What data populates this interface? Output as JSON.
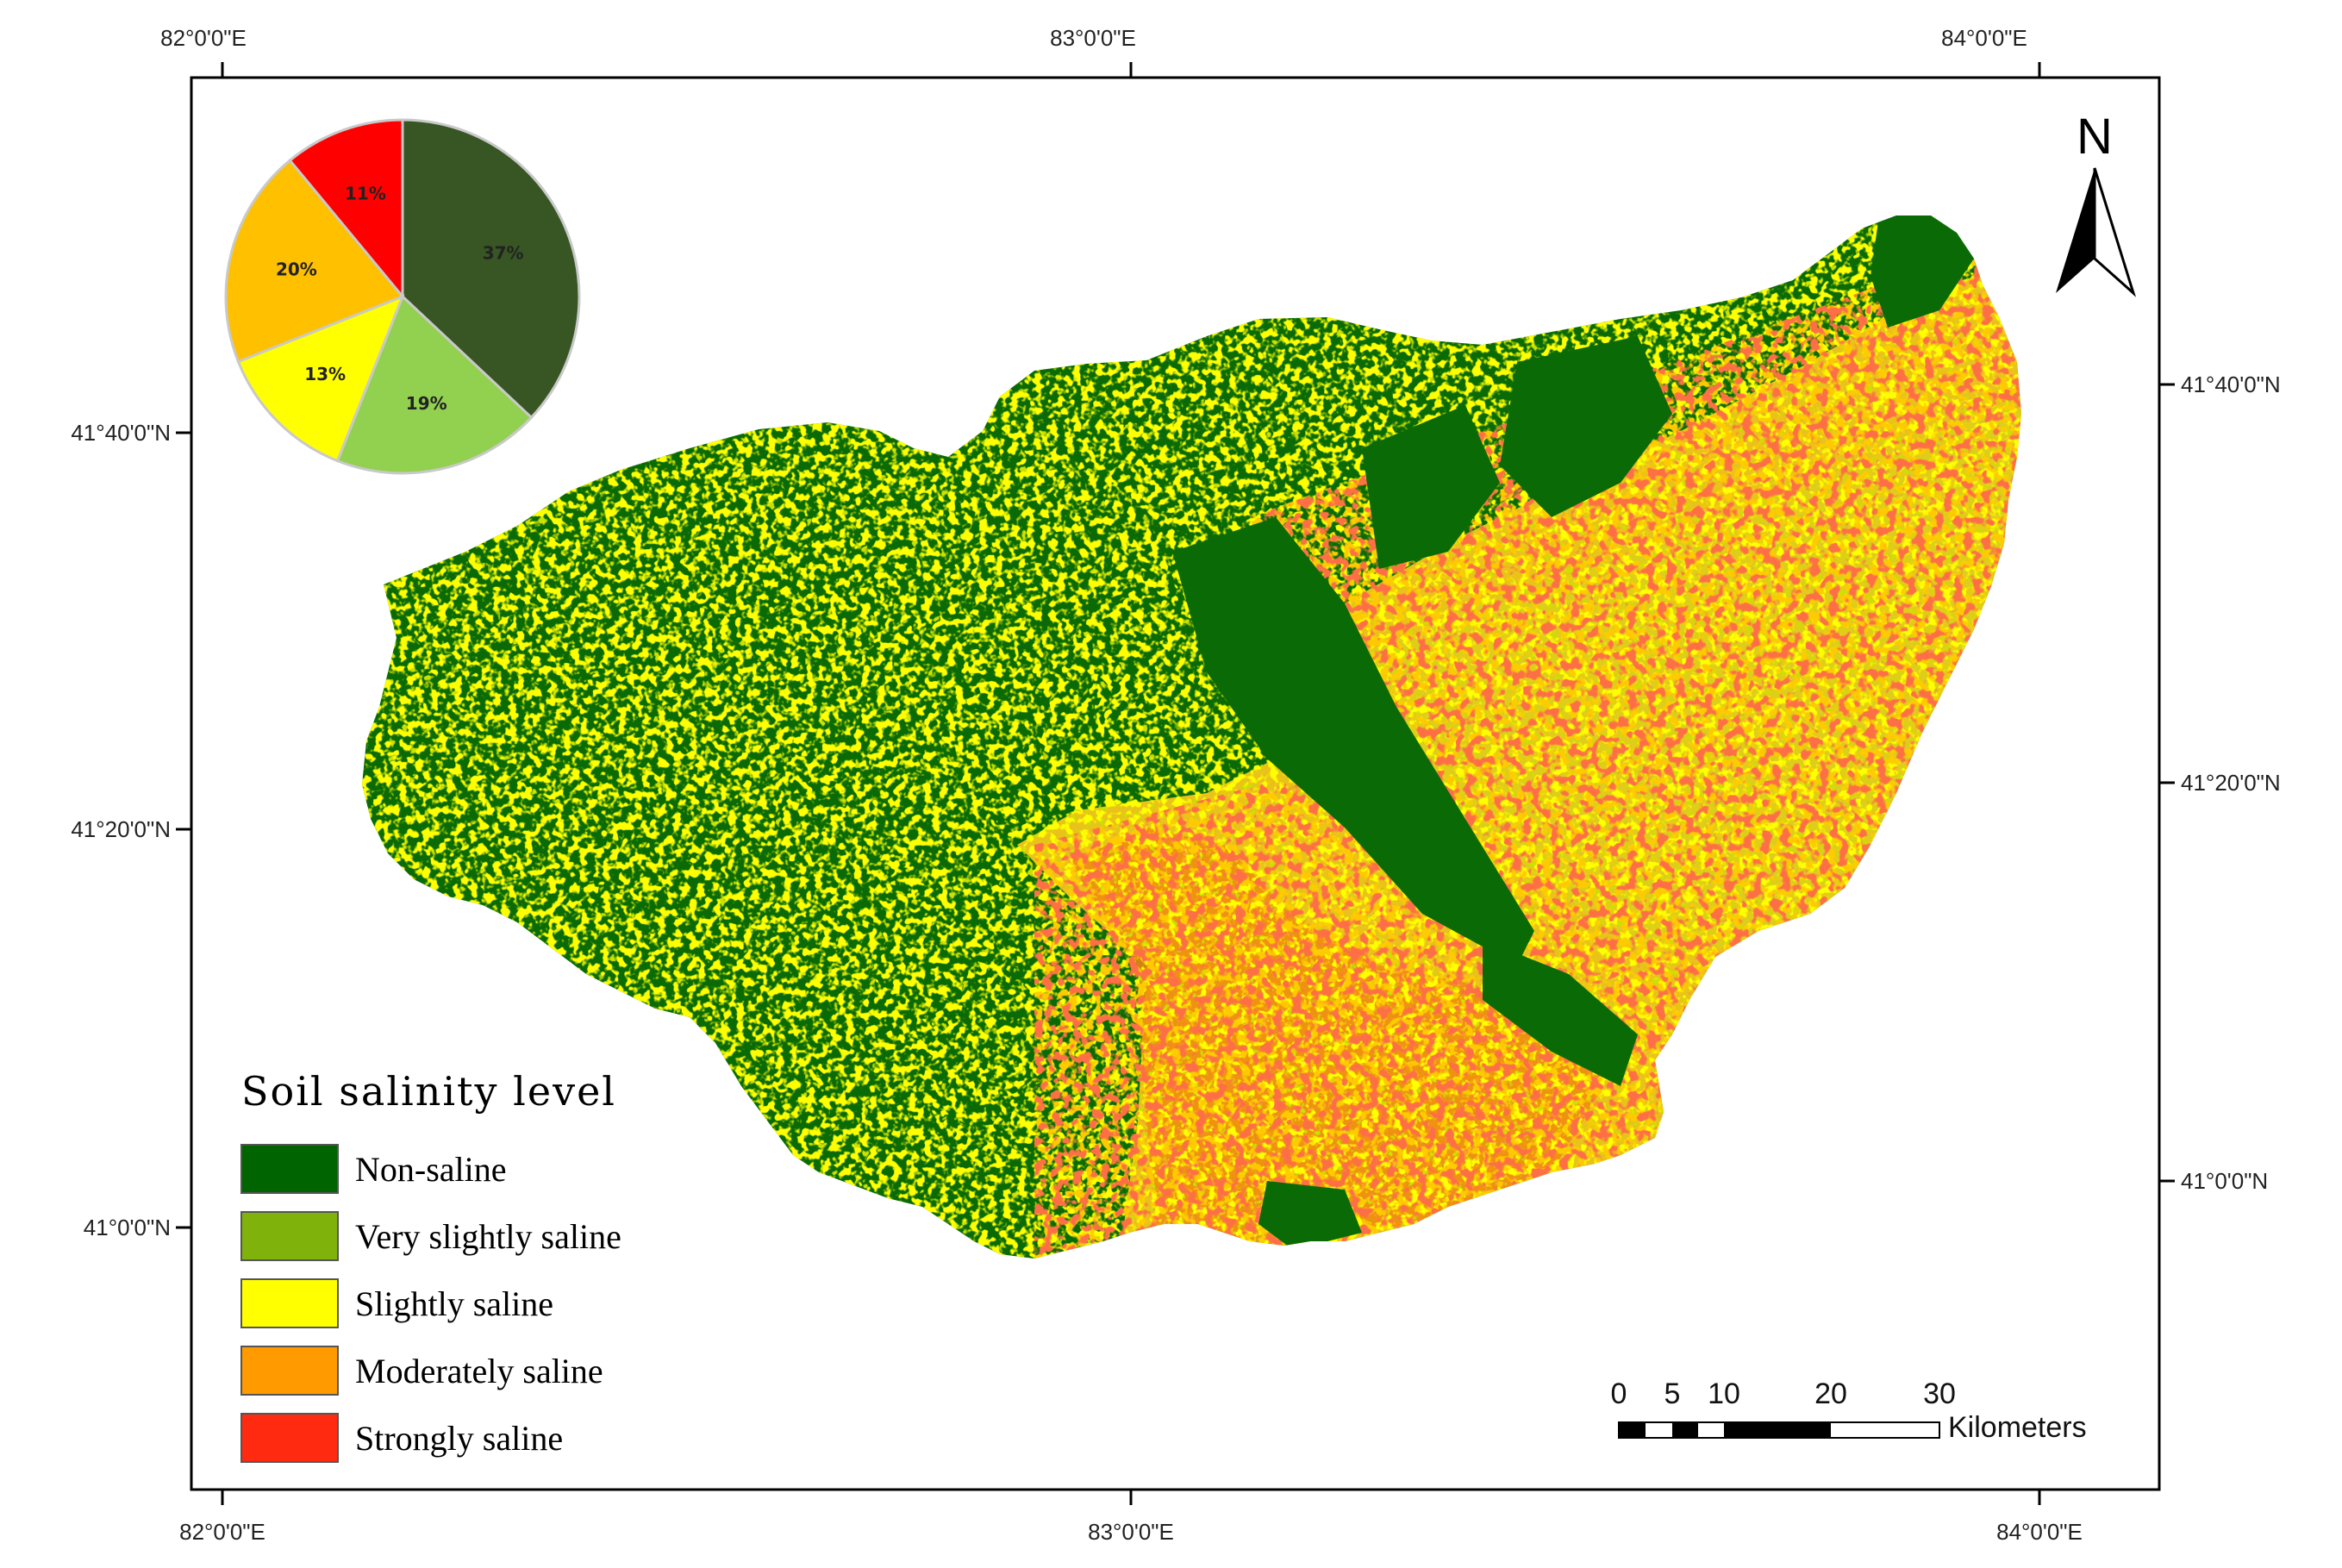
{
  "colors": {
    "non_saline": "#006400",
    "very_slightly_saline": "#7fb20a",
    "slightly_saline": "#ffff00",
    "moderately_saline": "#ff9a00",
    "strongly_saline": "#ff2a10",
    "pie_non_saline": "#375623",
    "pie_very_slightly": "#92d050",
    "pie_slightly": "#ffff00",
    "pie_moderately": "#ffc000",
    "pie_strongly": "#ff0000"
  },
  "graticule": {
    "top_x": [
      "82°0'0\"E",
      "83°0'0\"E",
      "84°0'0\"E"
    ],
    "bottom_x": [
      "82°0'0\"E",
      "83°0'0\"E",
      "84°0'0\"E"
    ],
    "left_y": [
      "41°40'0\"N",
      "41°20'0\"N",
      "41°0'0\"N"
    ],
    "right_y": [
      "41°40'0\"N",
      "41°20'0\"N",
      "41°0'0\"N"
    ]
  },
  "legend": {
    "title": "Soil salinity level",
    "items": [
      {
        "label": "Non-saline",
        "color": "#006400"
      },
      {
        "label": "Very slightly saline",
        "color": "#7fb20a"
      },
      {
        "label": "Slightly saline",
        "color": "#ffff00"
      },
      {
        "label": "Moderately saline",
        "color": "#ff9a00"
      },
      {
        "label": "Strongly saline",
        "color": "#ff2a10"
      }
    ]
  },
  "pie": {
    "slices": [
      {
        "class": "Non-saline",
        "percent": 37,
        "label": "37%",
        "color": "#375623"
      },
      {
        "class": "Very slightly saline",
        "percent": 19,
        "label": "19%",
        "color": "#92d050"
      },
      {
        "class": "Slightly saline",
        "percent": 13,
        "label": "13%",
        "color": "#ffff00"
      },
      {
        "class": "Moderately saline",
        "percent": 20,
        "label": "20%",
        "color": "#ffc000"
      },
      {
        "class": "Strongly saline",
        "percent": 11,
        "label": "11%",
        "color": "#ff0000"
      }
    ]
  },
  "north_arrow": {
    "letter": "N"
  },
  "scale_bar": {
    "ticks": [
      "0",
      "5",
      "10",
      "20",
      "30"
    ],
    "unit": "Kilometers"
  }
}
